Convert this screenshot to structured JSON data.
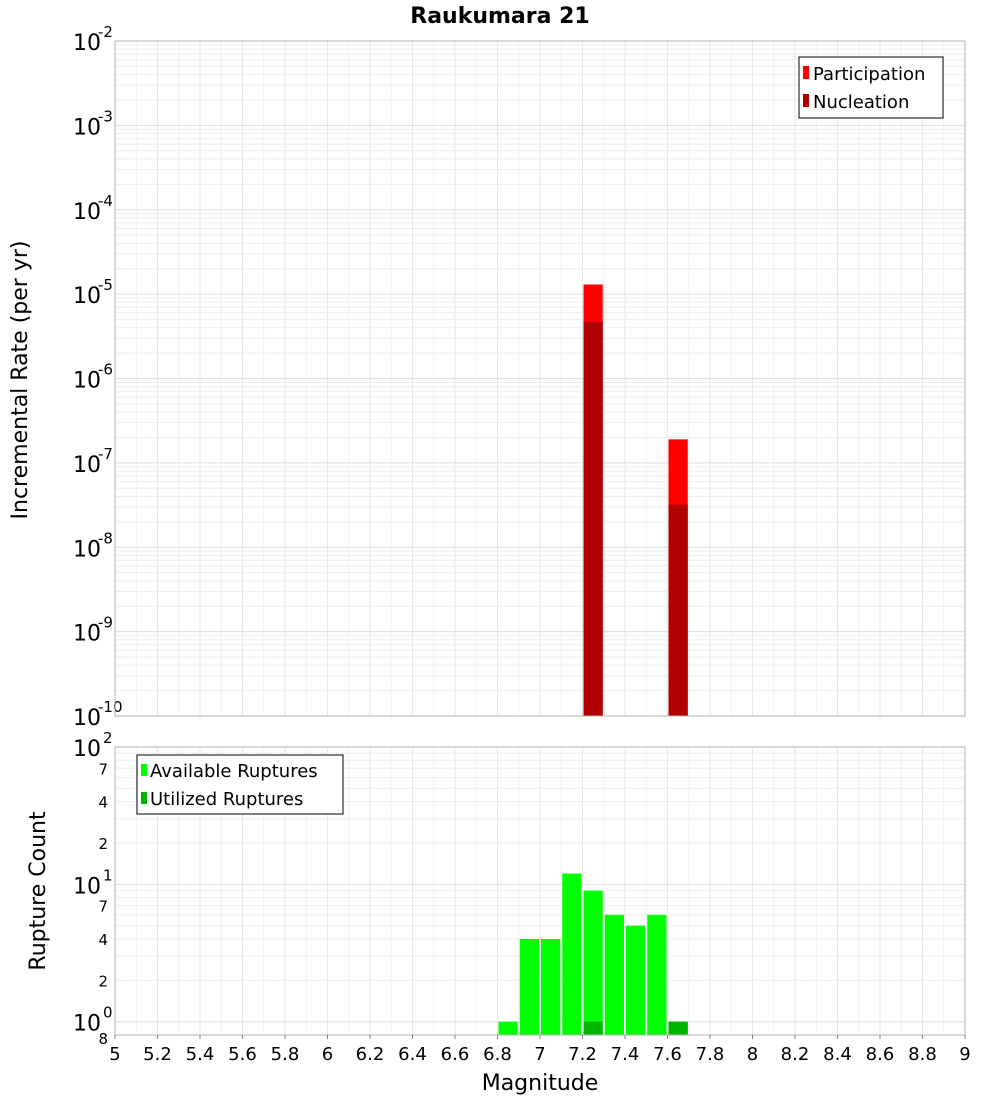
{
  "chart_data": [
    {
      "type": "bar",
      "title": "Raukumara 21",
      "ylabel": "Incremental Rate (per yr)",
      "xlabel": "",
      "yscale": "log",
      "xlim": [
        5,
        9
      ],
      "ylim": [
        1e-10,
        0.01
      ],
      "y_ticks": [
        {
          "base": "10",
          "exp": "-10"
        },
        {
          "base": "10",
          "exp": "-9"
        },
        {
          "base": "10",
          "exp": "-8"
        },
        {
          "base": "10",
          "exp": "-7"
        },
        {
          "base": "10",
          "exp": "-6"
        },
        {
          "base": "10",
          "exp": "-5"
        },
        {
          "base": "10",
          "exp": "-4"
        },
        {
          "base": "10",
          "exp": "-3"
        },
        {
          "base": "10",
          "exp": "-2"
        }
      ],
      "bin_width": 0.1,
      "grid": true,
      "legend_position": "top-right",
      "series": [
        {
          "name": "Participation",
          "color": "#ff0000",
          "x": [
            7.25,
            7.65
          ],
          "values": [
            1.3e-05,
            1.9e-07
          ]
        },
        {
          "name": "Nucleation",
          "color": "#b00000",
          "x": [
            7.25,
            7.65
          ],
          "values": [
            4.7e-06,
            3.2e-08
          ]
        }
      ]
    },
    {
      "type": "bar",
      "title": "",
      "ylabel": "Rupture Count",
      "xlabel": "Magnitude",
      "yscale": "log",
      "xlim": [
        5,
        9
      ],
      "ylim": [
        0.8,
        100
      ],
      "x_ticks": [
        "5",
        "5.2",
        "5.4",
        "5.6",
        "5.8",
        "6",
        "6.2",
        "6.4",
        "6.6",
        "6.8",
        "7",
        "7.2",
        "7.4",
        "7.6",
        "7.8",
        "8",
        "8.2",
        "8.4",
        "8.6",
        "8.8",
        "9"
      ],
      "y_ticks": [
        {
          "base": "10",
          "exp": "0"
        },
        {
          "base": "10",
          "exp": "1"
        },
        {
          "base": "10",
          "exp": "2"
        }
      ],
      "y_minor_ticks": [
        "8",
        "2",
        "4",
        "7",
        "2",
        "4",
        "7"
      ],
      "bin_width": 0.1,
      "grid": true,
      "legend_position": "top-left",
      "series": [
        {
          "name": "Available Ruptures",
          "color": "#00ff00",
          "x": [
            6.85,
            6.95,
            7.05,
            7.15,
            7.25,
            7.35,
            7.45,
            7.55,
            7.65
          ],
          "values": [
            1,
            4,
            4,
            12,
            9,
            6,
            5,
            6,
            1
          ]
        },
        {
          "name": "Utilized Ruptures",
          "color": "#00b400",
          "x": [
            7.25,
            7.65
          ],
          "values": [
            1,
            1
          ]
        }
      ]
    }
  ]
}
